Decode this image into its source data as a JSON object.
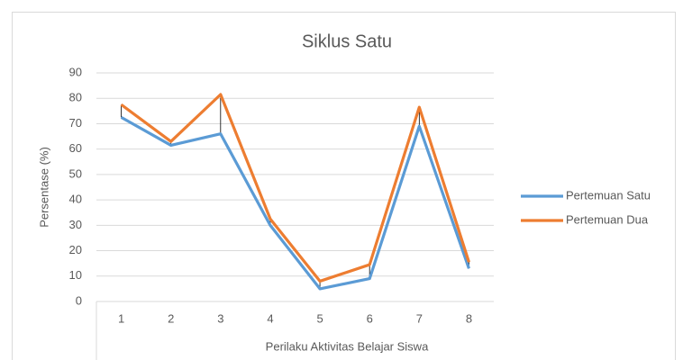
{
  "chart_data": {
    "type": "line",
    "title": "Siklus Satu",
    "x_label": "Perilaku Aktivitas Belajar Siswa",
    "y_label": "Persentase (%)",
    "categories": [
      "1",
      "2",
      "3",
      "4",
      "5",
      "6",
      "7",
      "8"
    ],
    "series": [
      {
        "name": "Pertemuan Satu",
        "color": "#5b9bd5",
        "values": [
          72.5,
          61.5,
          66,
          30,
          5,
          9,
          69,
          13
        ]
      },
      {
        "name": "Pertemuan Dua",
        "color": "#ed7d31",
        "values": [
          77.5,
          63,
          81.5,
          32.5,
          8,
          14.5,
          76.5,
          15.5
        ]
      }
    ],
    "ylim": [
      0,
      90
    ],
    "yticks": [
      0,
      10,
      20,
      30,
      40,
      50,
      60,
      70,
      80,
      90
    ],
    "grid": true,
    "high_low_lines": true,
    "legend": "right"
  }
}
